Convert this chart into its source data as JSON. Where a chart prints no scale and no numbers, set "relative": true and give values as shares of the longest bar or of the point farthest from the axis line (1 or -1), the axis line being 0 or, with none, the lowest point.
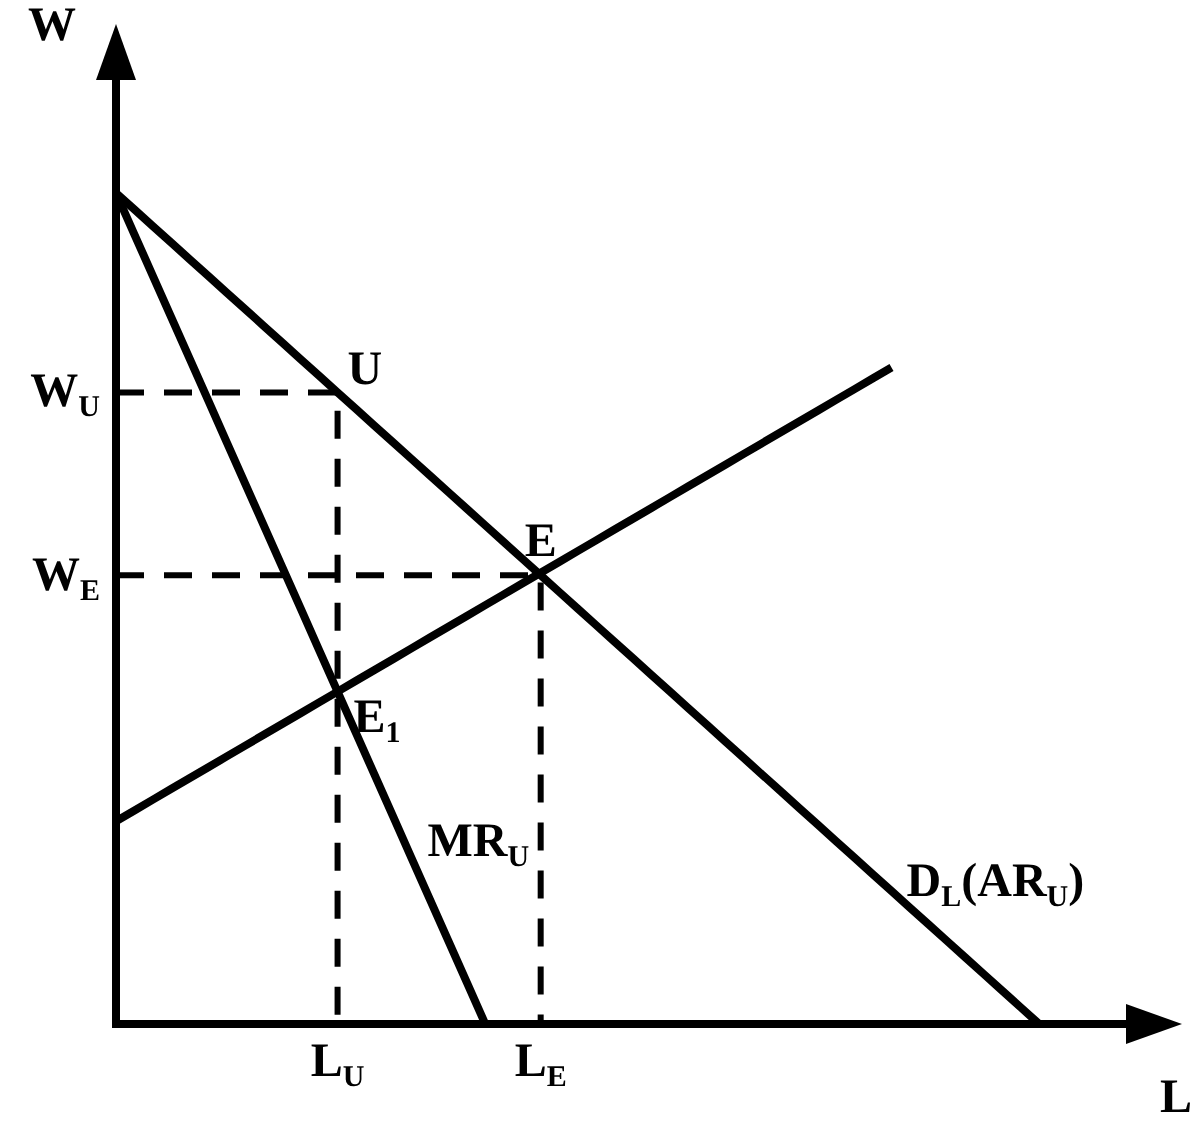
{
  "chart_data": {
    "type": "line",
    "relative": true,
    "xlabel": "L",
    "ylabel": "W",
    "marker": "none",
    "line_style": "solid",
    "categories": [
      null,
      null,
      null,
      null,
      null,
      null,
      null,
      null,
      null,
      null,
      null,
      null,
      "L$_{U}$",
      null,
      null,
      null,
      null,
      null,
      null,
      null,
      null,
      null,
      null,
      "L$_{E}$",
      null,
      null,
      null,
      null,
      null,
      null,
      null,
      null,
      null,
      null,
      null,
      null,
      null,
      null,
      null,
      null,
      null,
      null,
      null,
      null,
      null,
      null,
      null,
      null,
      null,
      null,
      null,
      null,
      null,
      null,
      null,
      null,
      null
    ],
    "series": [
      {
        "name": "D$_{L}$(AR$_{U}$)",
        "color": "#000000",
        "values": [
          1,
          0.98,
          0.96,
          0.94,
          0.92,
          0.9,
          0.88,
          0.86,
          0.84,
          0.82,
          0.8,
          0.78,
          0.76,
          0.74,
          0.72,
          0.7,
          0.68,
          0.66,
          0.64,
          0.62,
          0.6,
          0.58,
          0.56,
          0.54,
          0.52,
          0.5,
          0.48,
          0.46,
          0.44,
          0.42,
          0.4,
          0.38,
          0.36,
          0.34,
          0.32,
          0.3,
          0.28,
          0.26,
          0.24,
          0.22,
          0.2,
          0.18,
          0.16,
          0.14,
          0.12,
          0.1,
          0.08,
          0.06,
          0.04,
          0.02,
          0,
          null,
          null,
          null,
          null,
          null,
          null
        ]
      },
      {
        "name": "MR$_{U}$",
        "color": "#000000",
        "values": [
          1,
          0.95,
          0.9,
          0.85,
          0.8,
          0.75,
          0.7,
          0.65,
          0.6,
          0.55,
          0.5,
          0.45,
          0.4,
          0.35,
          0.3,
          0.25,
          0.2,
          0.15,
          0.1,
          0.05,
          0,
          null,
          null,
          null,
          null,
          null,
          null,
          null,
          null,
          null,
          null,
          null,
          null,
          null,
          null,
          null,
          null,
          null,
          null,
          null,
          null,
          null,
          null,
          null,
          null,
          null,
          null,
          null,
          null,
          null,
          null,
          null,
          null,
          null,
          null,
          null,
          null
        ]
      },
      {
        "color": "#000000",
        "values": [
          0.244,
          0.257,
          0.27,
          0.283,
          0.296,
          0.309,
          0.322,
          0.335,
          0.348,
          0.361,
          0.374,
          0.387,
          0.4,
          0.413,
          0.426,
          0.439,
          0.452,
          0.465,
          0.478,
          0.491,
          0.504,
          0.517,
          0.53,
          0.543,
          0.556,
          0.569,
          0.582,
          0.595,
          0.608,
          0.621,
          0.634,
          0.647,
          0.66,
          0.673,
          0.686,
          0.699,
          0.712,
          0.725,
          0.738,
          0.751,
          0.764,
          0.777,
          0.79,
          null,
          null,
          null,
          null,
          null,
          null,
          null,
          null,
          null,
          null,
          null,
          null,
          null,
          null
        ]
      },
      {
        "type": "step",
        "color": "#000000",
        "line_style": "dashed",
        "values": [
          0.76,
          0.76,
          0.76,
          0.76,
          0.76,
          0.76,
          0.76,
          0.76,
          0.76,
          0.76,
          0.76,
          0.76,
          0,
          null,
          null,
          null,
          null,
          null,
          null,
          null,
          null,
          null,
          null,
          null,
          null,
          null,
          null,
          null,
          null,
          null,
          null,
          null,
          null,
          null,
          null,
          null,
          null,
          null,
          null,
          null,
          null,
          null,
          null,
          null,
          null,
          null,
          null,
          null,
          null,
          null,
          null,
          null,
          null,
          null,
          null,
          null,
          null
        ]
      },
      {
        "type": "step",
        "color": "#000000",
        "line_style": "dashed",
        "values": [
          0.54,
          0.54,
          0.54,
          0.54,
          0.54,
          0.54,
          0.54,
          0.54,
          0.54,
          0.54,
          0.54,
          0.54,
          0.54,
          0.54,
          0.54,
          0.54,
          0.54,
          0.54,
          0.54,
          0.54,
          0.54,
          0.54,
          0.54,
          0,
          null,
          null,
          null,
          null,
          null,
          null,
          null,
          null,
          null,
          null,
          null,
          null,
          null,
          null,
          null,
          null,
          null,
          null,
          null,
          null,
          null,
          null,
          null,
          null,
          null,
          null,
          null,
          null,
          null,
          null,
          null,
          null,
          null
        ]
      }
    ],
    "annotations": [
      "W$_{U}$",
      "W$_{E}$",
      {
        "text": "U",
        "x": "L$_{U}$",
        "y": 0.76
      },
      {
        "text": "E",
        "x": "L$_{E}$",
        "y": 0.54
      },
      {
        "text": "E$_{1}$",
        "x": "L$_{U}$",
        "y": 0.4
      }
    ]
  }
}
